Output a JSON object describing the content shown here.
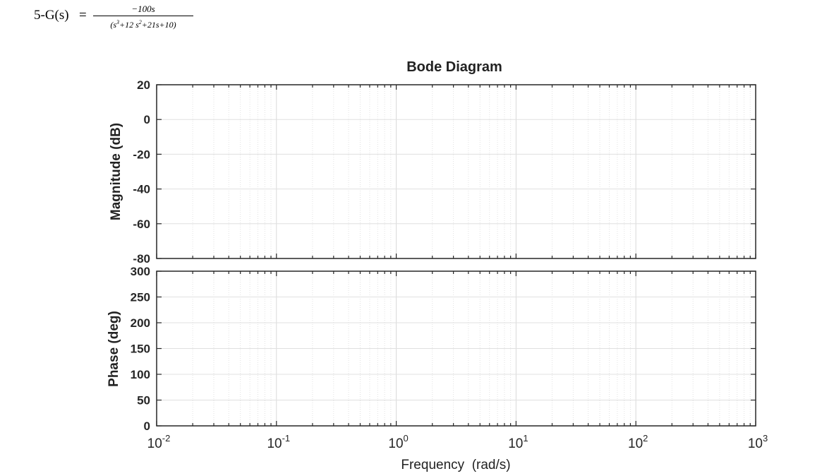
{
  "problem": {
    "prefix": "5-G(s)",
    "equals": "=",
    "numerator": "−100s",
    "denominator_parts": [
      "(s",
      "3",
      "+12 s",
      "2",
      "+21s+10)"
    ]
  },
  "chart_data": {
    "type": "line",
    "title": "Bode Diagram",
    "xlabel": "Frequency  (rad/s)",
    "xscale": "log",
    "xlim": [
      0.01,
      1000
    ],
    "x_tick_base": "10",
    "x_tick_exponents": [
      "-2",
      "-1",
      "0",
      "1",
      "2",
      "3"
    ],
    "grid": true,
    "panels": [
      {
        "name": "magnitude",
        "ylabel": "Magnitude (dB)",
        "ylim": [
          -80,
          20
        ],
        "yticks": [
          20,
          0,
          -20,
          -40,
          -60,
          -80
        ],
        "series": []
      },
      {
        "name": "phase",
        "ylabel": "Phase (deg)",
        "ylim": [
          0,
          300
        ],
        "yticks": [
          300,
          250,
          200,
          150,
          100,
          50,
          0
        ],
        "series": []
      }
    ]
  }
}
